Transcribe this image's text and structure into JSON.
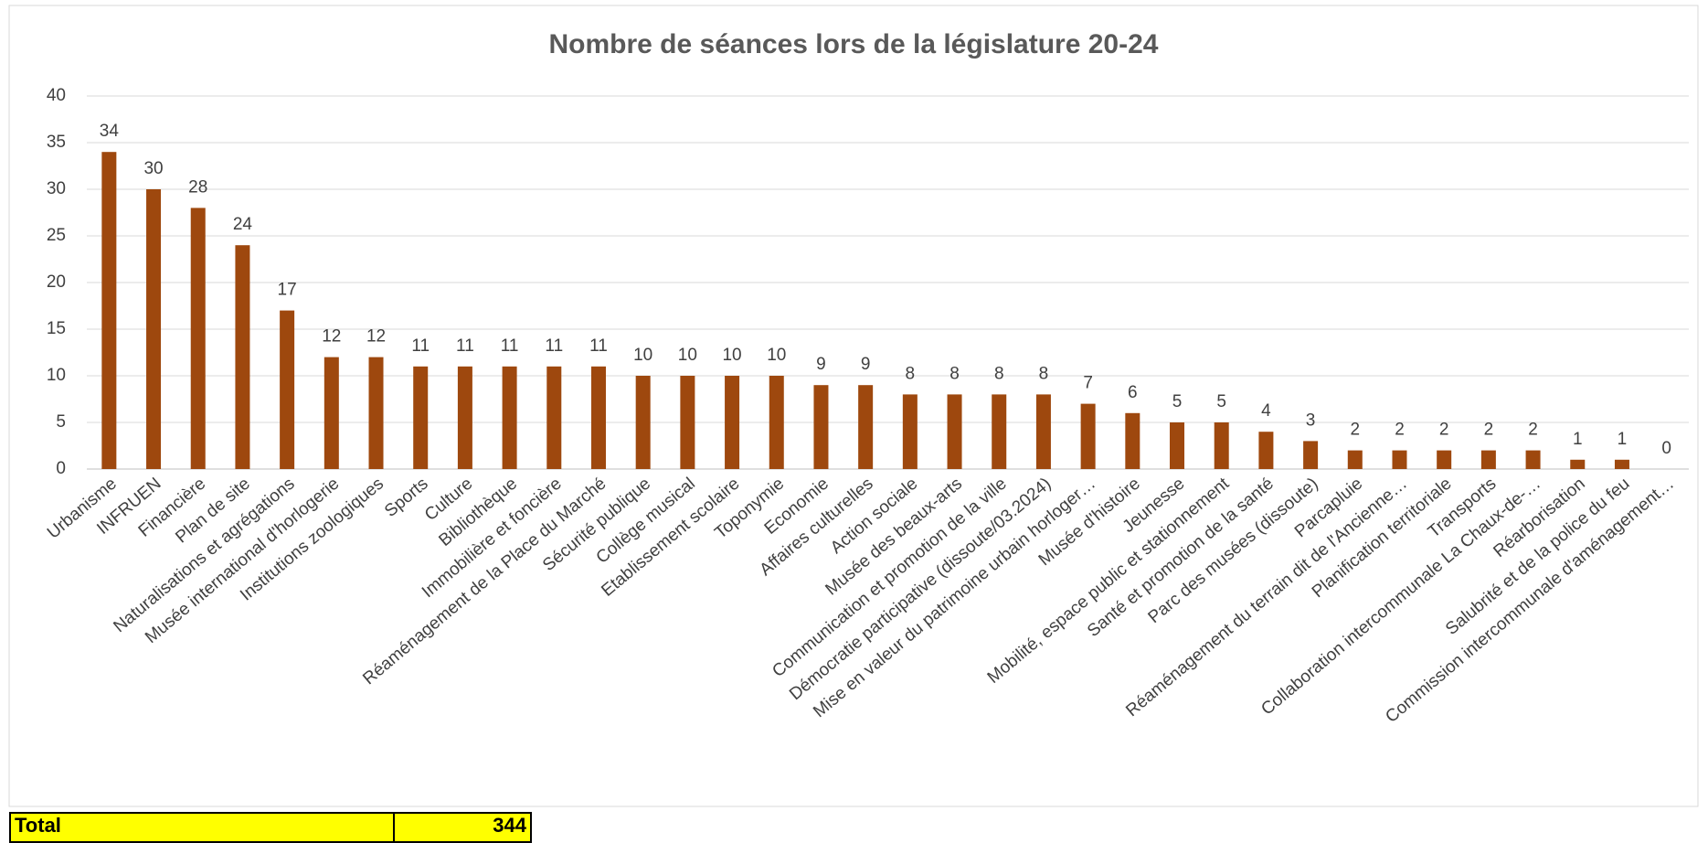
{
  "chart_data": {
    "type": "bar",
    "title": "Nombre de séances lors de la législature 20-24",
    "categories": [
      "Urbanisme",
      "INFRUEN",
      "Financière",
      "Plan de site",
      "Naturalisations et agrégations",
      "Musée international d'horlogerie",
      "Institutions zoologiques",
      "Sports",
      "Culture",
      "Bibliothèque",
      "Immobilière et foncière",
      "Réaménagement de la Place du Marché",
      "Sécurité publique",
      "Collège musical",
      "Etablissement scolaire",
      "Toponymie",
      "Economie",
      "Affaires culturelles",
      "Action sociale",
      "Musée des beaux-arts",
      "Communication et promotion de la ville",
      "Démocratie participative (dissoute/03.2024)",
      "Mise en valeur du patrimoine urbain horloger…",
      "Musée d'histoire",
      "Jeunesse",
      "Mobilité, espace public et stationnement",
      "Santé et promotion de la santé",
      "Parc des musées (dissoute)",
      "Parcapluie",
      "Réaménagement du terrain dit de l'Ancienne…",
      "Planification territoriale",
      "Transports",
      "Collaboration intercommunale La Chaux-de-…",
      "Réarborisation",
      "Salubrité et de la police du feu",
      "Commission intercommunale d'aménagement…"
    ],
    "values": [
      34,
      30,
      28,
      24,
      17,
      12,
      12,
      11,
      11,
      11,
      11,
      11,
      10,
      10,
      10,
      10,
      9,
      9,
      8,
      8,
      8,
      8,
      7,
      6,
      5,
      5,
      4,
      3,
      2,
      2,
      2,
      2,
      2,
      1,
      1,
      0
    ],
    "color": "#9e480e",
    "ylim": [
      0,
      40
    ],
    "yticks": [
      0,
      5,
      10,
      15,
      20,
      25,
      30,
      35,
      40
    ],
    "grid": true,
    "data_labels": true
  },
  "total": {
    "label": "Total",
    "value": 344
  }
}
